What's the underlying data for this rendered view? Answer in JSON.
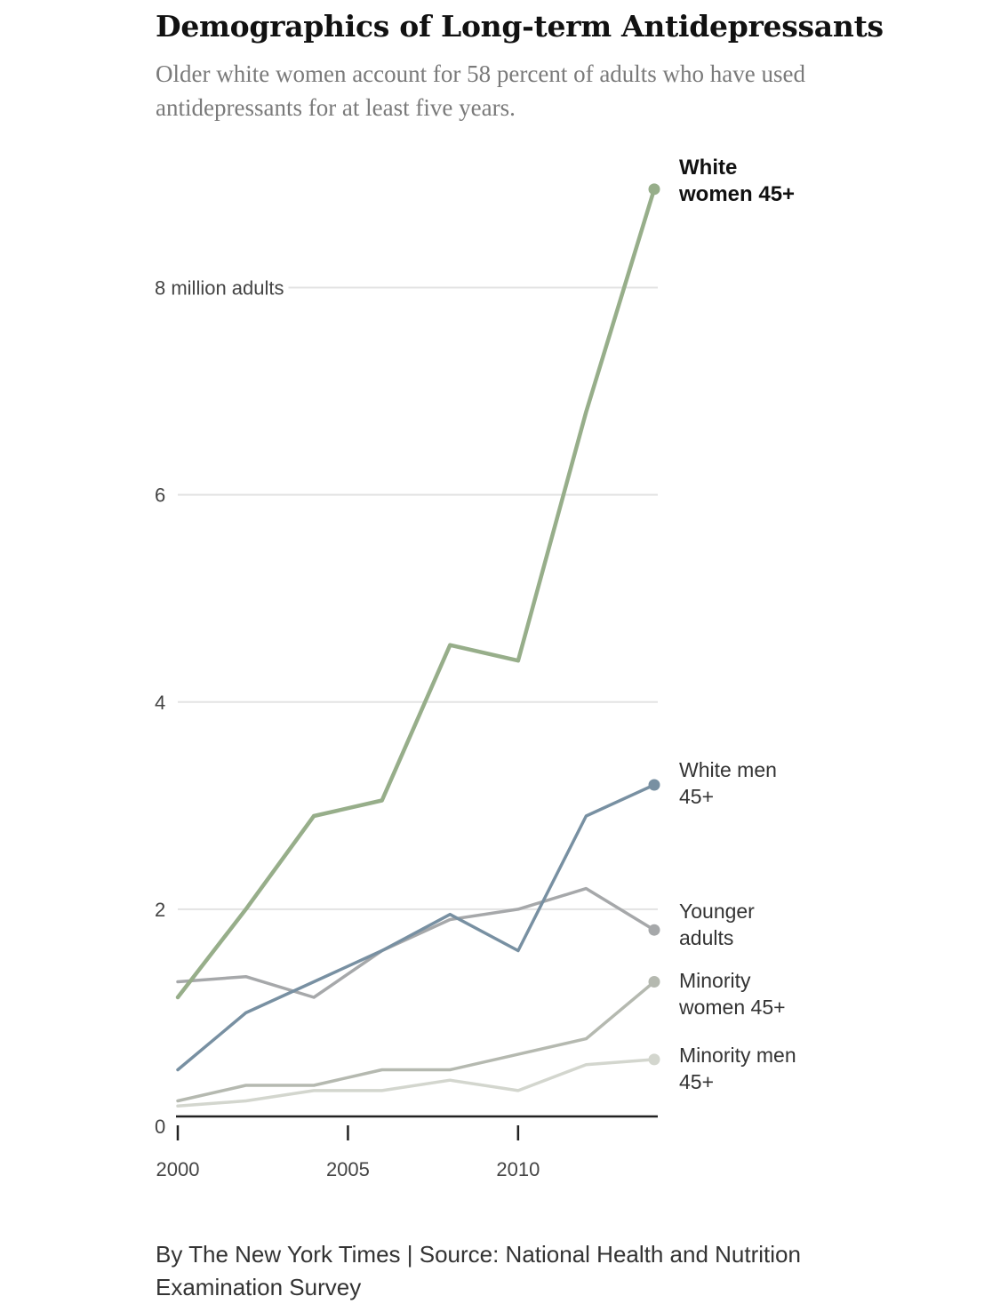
{
  "title": "Demographics of Long-term Antidepressants",
  "subtitle": "Older white women account for 58 percent of adults who have used antidepressants for at least five years.",
  "footer": "By The New York Times | Source: National Health and Nutrition Examination Survey",
  "chart_data": {
    "type": "line",
    "title": "Demographics of Long-term Antidepressants",
    "subtitle": "Older white women account for 58 percent of adults who have used antidepressants for at least five years.",
    "ylabel": "",
    "xlabel": "",
    "x": [
      2000,
      2002,
      2004,
      2006,
      2008,
      2010,
      2012,
      2014
    ],
    "xlim": [
      2000,
      2014
    ],
    "ylim": [
      0,
      9
    ],
    "grid": true,
    "legend": "direct labels at line ends (right)",
    "x_ticks": [
      {
        "value": 2000,
        "label": "2000"
      },
      {
        "value": 2005,
        "label": "2005"
      },
      {
        "value": 2010,
        "label": "2010"
      }
    ],
    "y_ticks": [
      {
        "value": 0,
        "label": "0"
      },
      {
        "value": 2,
        "label": "2"
      },
      {
        "value": 4,
        "label": "4"
      },
      {
        "value": 6,
        "label": "6"
      },
      {
        "value": 8,
        "label": "8 million adults"
      }
    ],
    "series": [
      {
        "name": "White women 45+",
        "label_lines": [
          "White",
          "women 45+"
        ],
        "color": "#97ae8a",
        "label_color": "#111111",
        "bold": true,
        "values": [
          1.15,
          2.0,
          2.9,
          3.05,
          4.55,
          4.4,
          6.8,
          8.95
        ]
      },
      {
        "name": "White men 45+",
        "label_lines": [
          "White men",
          "45+"
        ],
        "color": "#7890a2",
        "label_color": "#333333",
        "bold": false,
        "values": [
          0.45,
          1.0,
          1.3,
          1.6,
          1.95,
          1.6,
          2.9,
          3.2
        ]
      },
      {
        "name": "Younger adults",
        "label_lines": [
          "Younger",
          "adults"
        ],
        "color": "#a6a8aa",
        "label_color": "#333333",
        "bold": false,
        "values": [
          1.3,
          1.35,
          1.15,
          1.6,
          1.9,
          2.0,
          2.2,
          1.8
        ]
      },
      {
        "name": "Minority women 45+",
        "label_lines": [
          "Minority",
          "women 45+"
        ],
        "color": "#b5b9b0",
        "label_color": "#333333",
        "bold": false,
        "values": [
          0.15,
          0.3,
          0.3,
          0.45,
          0.45,
          0.6,
          0.75,
          1.3
        ]
      },
      {
        "name": "Minority men 45+",
        "label_lines": [
          "Minority men",
          "45+"
        ],
        "color": "#d3d6ce",
        "label_color": "#333333",
        "bold": false,
        "values": [
          0.1,
          0.15,
          0.25,
          0.25,
          0.35,
          0.25,
          0.5,
          0.55
        ]
      }
    ]
  }
}
